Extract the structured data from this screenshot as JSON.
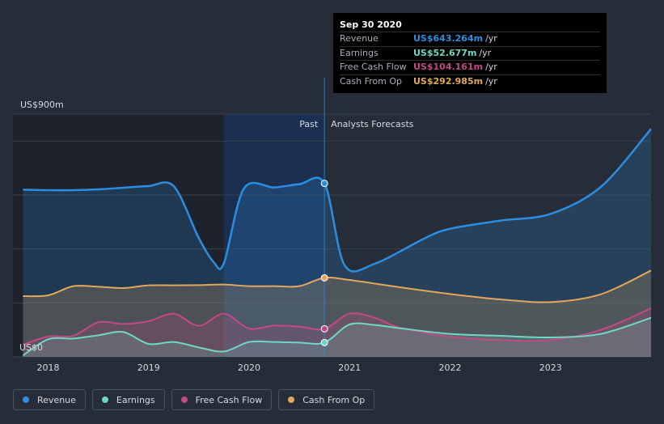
{
  "chart_data": {
    "type": "line",
    "y_top_label": "US$900m",
    "y_bottom_label": "US$0",
    "ylim": [
      0,
      900
    ],
    "xlim": [
      2017.65,
      2024.0
    ],
    "x_ticks": [
      {
        "label": "2018",
        "value": 2018
      },
      {
        "label": "2019",
        "value": 2019
      },
      {
        "label": "2020",
        "value": 2020
      },
      {
        "label": "2021",
        "value": 2021
      },
      {
        "label": "2022",
        "value": 2022
      },
      {
        "label": "2023",
        "value": 2023
      }
    ],
    "past_label": "Past",
    "forecast_label": "Analysts Forecasts",
    "divider_x": 2020.75,
    "highlight_range": [
      2019.75,
      2020.75
    ],
    "colors": {
      "revenue": "#2c8ee0",
      "earnings": "#6fd8c4",
      "fcf": "#c24a86",
      "cfo": "#e3a75c"
    },
    "series": [
      {
        "key": "revenue",
        "name": "Revenue",
        "color": "#2c8ee0",
        "points": [
          [
            2017.75,
            620
          ],
          [
            2018.0,
            618
          ],
          [
            2018.25,
            618
          ],
          [
            2018.5,
            621
          ],
          [
            2018.75,
            627
          ],
          [
            2019.0,
            633
          ],
          [
            2019.25,
            633
          ],
          [
            2019.5,
            440
          ],
          [
            2019.65,
            350
          ],
          [
            2019.75,
            348
          ],
          [
            2019.95,
            625
          ],
          [
            2020.25,
            628
          ],
          [
            2020.5,
            640
          ],
          [
            2020.75,
            643
          ],
          [
            2020.95,
            340
          ],
          [
            2021.25,
            345
          ],
          [
            2021.75,
            440
          ],
          [
            2022.0,
            475
          ],
          [
            2022.5,
            505
          ],
          [
            2023.0,
            530
          ],
          [
            2023.5,
            630
          ],
          [
            2024.0,
            845
          ]
        ]
      },
      {
        "key": "cfo",
        "name": "Cash From Op",
        "color": "#e3a75c",
        "points": [
          [
            2017.75,
            225
          ],
          [
            2018.0,
            228
          ],
          [
            2018.25,
            262
          ],
          [
            2018.5,
            260
          ],
          [
            2018.75,
            255
          ],
          [
            2019.0,
            265
          ],
          [
            2019.25,
            265
          ],
          [
            2019.5,
            266
          ],
          [
            2019.75,
            268
          ],
          [
            2020.0,
            262
          ],
          [
            2020.25,
            262
          ],
          [
            2020.5,
            262
          ],
          [
            2020.75,
            293
          ],
          [
            2021.0,
            285
          ],
          [
            2021.5,
            258
          ],
          [
            2022.0,
            233
          ],
          [
            2022.5,
            213
          ],
          [
            2023.0,
            203
          ],
          [
            2023.5,
            232
          ],
          [
            2024.0,
            320
          ]
        ]
      },
      {
        "key": "fcf",
        "name": "Free Cash Flow",
        "color": "#c24a86",
        "points": [
          [
            2017.75,
            45
          ],
          [
            2018.0,
            75
          ],
          [
            2018.25,
            78
          ],
          [
            2018.5,
            128
          ],
          [
            2018.75,
            122
          ],
          [
            2019.0,
            132
          ],
          [
            2019.25,
            160
          ],
          [
            2019.5,
            115
          ],
          [
            2019.75,
            160
          ],
          [
            2020.0,
            105
          ],
          [
            2020.25,
            116
          ],
          [
            2020.5,
            112
          ],
          [
            2020.75,
            104
          ],
          [
            2021.0,
            160
          ],
          [
            2021.25,
            145
          ],
          [
            2021.5,
            108
          ],
          [
            2022.0,
            75
          ],
          [
            2022.5,
            62
          ],
          [
            2023.0,
            62
          ],
          [
            2023.5,
            100
          ],
          [
            2024.0,
            180
          ]
        ]
      },
      {
        "key": "earnings",
        "name": "Earnings",
        "color": "#6fd8c4",
        "points": [
          [
            2017.75,
            5
          ],
          [
            2018.0,
            65
          ],
          [
            2018.25,
            68
          ],
          [
            2018.5,
            80
          ],
          [
            2018.75,
            92
          ],
          [
            2019.0,
            48
          ],
          [
            2019.25,
            55
          ],
          [
            2019.5,
            35
          ],
          [
            2019.75,
            20
          ],
          [
            2020.0,
            55
          ],
          [
            2020.25,
            55
          ],
          [
            2020.5,
            53
          ],
          [
            2020.75,
            53
          ],
          [
            2021.0,
            120
          ],
          [
            2021.25,
            118
          ],
          [
            2021.5,
            106
          ],
          [
            2022.0,
            85
          ],
          [
            2022.5,
            78
          ],
          [
            2023.0,
            72
          ],
          [
            2023.5,
            85
          ],
          [
            2024.0,
            145
          ]
        ]
      }
    ]
  },
  "tooltip": {
    "date": "Sep 30 2020",
    "rows": [
      {
        "key": "revenue",
        "label": "Revenue",
        "value": "US$643.264m",
        "unit": "/yr",
        "color": "#2c8ee0"
      },
      {
        "key": "earnings",
        "label": "Earnings",
        "value": "US$52.677m",
        "unit": "/yr",
        "color": "#6fd8c4"
      },
      {
        "key": "fcf",
        "label": "Free Cash Flow",
        "value": "US$104.161m",
        "unit": "/yr",
        "color": "#c24a86"
      },
      {
        "key": "cfo",
        "label": "Cash From Op",
        "value": "US$292.985m",
        "unit": "/yr",
        "color": "#e3a75c"
      }
    ]
  },
  "legend": [
    {
      "label": "Revenue",
      "color": "#2c8ee0"
    },
    {
      "label": "Earnings",
      "color": "#6fd8c4"
    },
    {
      "label": "Free Cash Flow",
      "color": "#c24a86"
    },
    {
      "label": "Cash From Op",
      "color": "#e3a75c"
    }
  ]
}
